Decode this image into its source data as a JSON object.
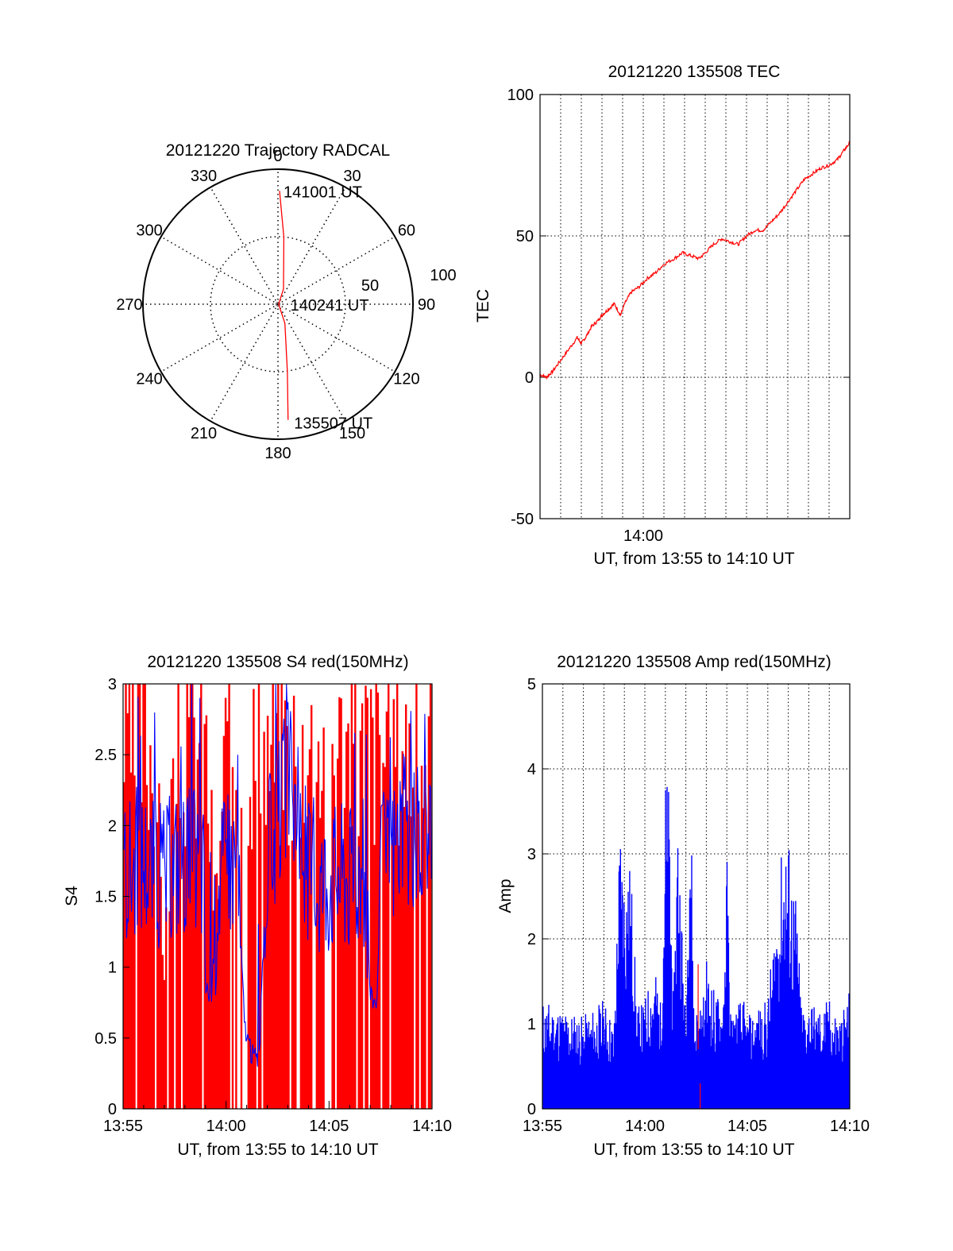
{
  "chart_data": [
    {
      "type": "polar",
      "title": "20121220 Trajectory RADCAL",
      "angle_labels": [
        "0",
        "30",
        "60",
        "90",
        "120",
        "150",
        "180",
        "210",
        "240",
        "270",
        "300",
        "330"
      ],
      "radius_labels": [
        "50",
        "100"
      ],
      "rmax": 100,
      "trajectory": {
        "color": "#ff0000",
        "points": [
          {
            "az": 0.8,
            "r": 84
          },
          {
            "az": 5,
            "r": 50
          },
          {
            "az": 20,
            "r": 12
          },
          {
            "az": 90,
            "r": 0.5
          },
          {
            "az": 160,
            "r": 15
          },
          {
            "az": 172,
            "r": 50
          },
          {
            "az": 175,
            "r": 86
          }
        ]
      },
      "annotations": [
        {
          "text": "141001 UT",
          "az": 2,
          "r": 84
        },
        {
          "text": "140241 UT",
          "az": 90,
          "r": 8
        },
        {
          "text": "135507 UT",
          "az": 173,
          "r": 88
        }
      ],
      "grid": true,
      "series": []
    },
    {
      "type": "line",
      "title": "20121220 135508 TEC",
      "xlabel": "UT, from 13:55 to 14:10 UT",
      "ylabel": "TEC",
      "xlim": [
        0,
        15
      ],
      "ylim": [
        -50,
        100
      ],
      "xticks": [
        {
          "value": 5,
          "label": "14:00"
        }
      ],
      "yticks": [
        -50,
        0,
        50,
        100
      ],
      "grid": true,
      "series": [
        {
          "color": "#ff0000",
          "x": [
            0,
            0.3,
            0.6,
            1,
            1.4,
            1.8,
            2.0,
            2.2,
            2.5,
            2.8,
            3.0,
            3.3,
            3.6,
            3.9,
            4.1,
            4.4,
            4.8,
            5.2,
            5.6,
            6.0,
            6.5,
            6.9,
            7.3,
            7.7,
            8.0,
            8.4,
            8.8,
            9.2,
            9.6,
            10.0,
            10.4,
            10.8,
            11.2,
            11.6,
            12.0,
            12.4,
            12.8,
            13.2,
            13.6,
            14.0,
            14.4,
            14.7,
            15.0
          ],
          "y": [
            1,
            0,
            2,
            6,
            10,
            14,
            12,
            14,
            18,
            20,
            22,
            24,
            26,
            22,
            26,
            30,
            32,
            35,
            37,
            40,
            42,
            44,
            43,
            42,
            44,
            47,
            49,
            48,
            47,
            50,
            52,
            52,
            55,
            58,
            62,
            66,
            70,
            72,
            74,
            75,
            77,
            80,
            83
          ]
        }
      ]
    },
    {
      "type": "area",
      "title": "20121220 135508 S4 red(150MHz)",
      "xlabel": "UT, from 13:55 to 14:10 UT",
      "ylabel": "S4",
      "xlim": [
        0,
        15
      ],
      "ylim": [
        0,
        3
      ],
      "xticks": [
        {
          "value": 0,
          "label": "13:55"
        },
        {
          "value": 5,
          "label": "14:00"
        },
        {
          "value": 10,
          "label": "14:05"
        },
        {
          "value": 15,
          "label": "14:10"
        }
      ],
      "yticks": [
        {
          "value": 0,
          "label": "0"
        },
        {
          "value": 0.5,
          "label": "0.5"
        },
        {
          "value": 1,
          "label": "1"
        },
        {
          "value": 1.5,
          "label": "1.5"
        },
        {
          "value": 2,
          "label": "2"
        },
        {
          "value": 2.5,
          "label": "2.5"
        },
        {
          "value": 3,
          "label": "3"
        }
      ],
      "grid": false,
      "series": [
        {
          "color": "#ff0000",
          "x": [
            0,
            0.5,
            1.0,
            1.5,
            2.0,
            2.5,
            3.0,
            3.5,
            4.0,
            4.5,
            5.0,
            5.5,
            6.0,
            6.5,
            7.0,
            7.5,
            8.0,
            8.5,
            9.0,
            9.5,
            10.0,
            10.5,
            11.0,
            11.5,
            12.0,
            12.5,
            13.0,
            13.5,
            14.0,
            14.5,
            15.0
          ],
          "y": [
            3,
            3,
            3,
            3,
            1.3,
            3,
            3,
            3,
            3,
            1.6,
            3,
            3,
            3,
            3,
            3,
            3,
            3,
            3,
            3,
            3,
            3,
            3,
            3,
            3,
            3,
            3,
            3,
            3,
            3,
            3,
            3
          ]
        },
        {
          "color": "#0000ff",
          "x": [
            0,
            0.5,
            1.0,
            1.5,
            2.0,
            2.5,
            3.0,
            3.5,
            3.9,
            4.0,
            4.3,
            4.6,
            5.0,
            5.5,
            5.9,
            6.2,
            6.6,
            7.0,
            7.5,
            8.0,
            8.5,
            9.0,
            9.5,
            10.0,
            10.5,
            11.0,
            11.5,
            11.8,
            12.0,
            12.3,
            12.6,
            13.0,
            13.5,
            14.0,
            14.5,
            15.0
          ],
          "y": [
            1.7,
            1.75,
            1.8,
            1.7,
            1.65,
            1.75,
            1.8,
            1.75,
            1.7,
            0.85,
            0.8,
            1.6,
            1.75,
            1.8,
            0.6,
            0.4,
            0.35,
            1.8,
            2.0,
            2.4,
            2.0,
            1.7,
            1.6,
            1.65,
            1.7,
            1.65,
            1.7,
            1.6,
            0.8,
            0.75,
            1.7,
            1.8,
            2.0,
            1.9,
            1.75,
            1.8
          ]
        }
      ]
    },
    {
      "type": "area",
      "title": "20121220 135508 Amp red(150MHz)",
      "xlabel": "UT, from 13:55 to 14:10 UT",
      "ylabel": "Amp",
      "xlim": [
        0,
        15
      ],
      "ylim": [
        0,
        5
      ],
      "xticks": [
        {
          "value": 0,
          "label": "13:55"
        },
        {
          "value": 5,
          "label": "14:00"
        },
        {
          "value": 10,
          "label": "14:05"
        },
        {
          "value": 15,
          "label": "14:10"
        }
      ],
      "yticks": [
        0,
        1,
        2,
        3,
        4,
        5
      ],
      "grid": true,
      "series": [
        {
          "color": "#0000ff",
          "x": [
            0,
            1,
            2,
            3,
            3.5,
            3.7,
            3.8,
            4.0,
            4.2,
            4.4,
            4.6,
            5.0,
            5.4,
            5.6,
            5.8,
            6.0,
            6.2,
            6.4,
            6.6,
            7.0,
            7.2,
            7.4,
            7.6,
            7.8,
            8.0,
            8.4,
            8.8,
            9.0,
            9.2,
            9.5,
            9.6,
            9.8,
            10.0,
            10.5,
            11.0,
            11.4,
            11.6,
            11.8,
            12.0,
            12.2,
            12.4,
            12.6,
            12.8,
            13.0,
            13.5,
            14.0,
            14.5,
            15.0
          ],
          "y": [
            1.3,
            1.2,
            1.1,
            1.3,
            1.0,
            2.8,
            3.6,
            2.9,
            3.1,
            2.6,
            1.2,
            1.3,
            1.7,
            1.6,
            1.2,
            4.1,
            3.8,
            1.2,
            3.8,
            1.0,
            4.6,
            1.2,
            1.3,
            1.2,
            1.8,
            1.4,
            1.3,
            3.1,
            1.2,
            1.2,
            1.3,
            1.3,
            1.1,
            1.2,
            1.3,
            2.4,
            2.8,
            3.4,
            3.3,
            2.8,
            2.5,
            1.4,
            1.2,
            1.3,
            1.2,
            1.3,
            1.1,
            1.4
          ]
        },
        {
          "color": "#ff0000",
          "x": [
            7.6,
            7.7
          ],
          "y": [
            1.7,
            0.3
          ]
        }
      ]
    }
  ]
}
